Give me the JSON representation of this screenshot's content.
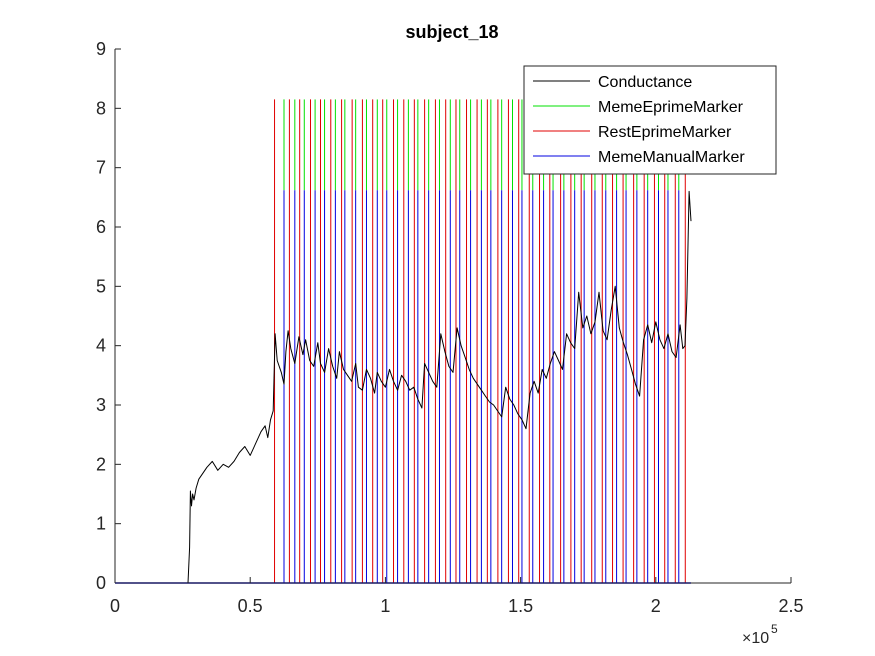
{
  "chart_data": {
    "type": "line",
    "title": "subject_18",
    "xlabel": "",
    "ylabel": "",
    "xlim": [
      0,
      250000
    ],
    "ylim": [
      0,
      9
    ],
    "x_exponent_label": "×10",
    "x_exponent_power": "5",
    "x_ticks": [
      {
        "value": 0,
        "label": "0"
      },
      {
        "value": 50000,
        "label": "0.5"
      },
      {
        "value": 100000,
        "label": "1"
      },
      {
        "value": 150000,
        "label": "1.5"
      },
      {
        "value": 200000,
        "label": "2"
      },
      {
        "value": 250000,
        "label": "2.5"
      }
    ],
    "y_ticks": [
      {
        "value": 0,
        "label": "0"
      },
      {
        "value": 1,
        "label": "1"
      },
      {
        "value": 2,
        "label": "2"
      },
      {
        "value": 3,
        "label": "3"
      },
      {
        "value": 4,
        "label": "4"
      },
      {
        "value": 5,
        "label": "5"
      },
      {
        "value": 6,
        "label": "6"
      },
      {
        "value": 7,
        "label": "7"
      },
      {
        "value": 8,
        "label": "8"
      },
      {
        "value": 9,
        "label": "9"
      }
    ],
    "grid": false,
    "legend_position": "top-right",
    "series": [
      {
        "name": "Conductance",
        "color": "#000000",
        "kind": "line",
        "x": [
          0,
          20000,
          27000,
          27600,
          27900,
          28300,
          28700,
          29200,
          30000,
          31000,
          32500,
          34000,
          36000,
          38000,
          40000,
          42000,
          44000,
          46000,
          48000,
          50000,
          52000,
          54000,
          55500,
          56500,
          57500,
          58500,
          59200,
          60000,
          61500,
          62500,
          63200,
          64000,
          65000,
          66500,
          68000,
          69500,
          70500,
          72000,
          73500,
          75000,
          76000,
          77500,
          79000,
          80500,
          82000,
          83000,
          84500,
          86000,
          87500,
          89000,
          90000,
          91500,
          93000,
          94500,
          96000,
          97000,
          98500,
          100000,
          101500,
          103000,
          104500,
          106000,
          107500,
          109000,
          110500,
          112000,
          113500,
          114500,
          116000,
          117500,
          119000,
          120500,
          122000,
          123500,
          125000,
          126500,
          128000,
          129500,
          131000,
          132500,
          134000,
          135500,
          137000,
          138500,
          140000,
          141500,
          143000,
          144500,
          146000,
          147500,
          149000,
          150500,
          152000,
          153500,
          155000,
          156500,
          158000,
          159500,
          161000,
          162500,
          164000,
          165500,
          167000,
          168500,
          170000,
          171500,
          173000,
          174500,
          176000,
          177500,
          179000,
          180500,
          182000,
          183500,
          185000,
          186500,
          188000,
          189500,
          191000,
          192500,
          194000,
          195500,
          197000,
          198500,
          200000,
          201500,
          203000,
          204500,
          206000,
          207500,
          209000,
          210000,
          210800,
          211500,
          212300,
          213000
        ],
        "y": [
          0,
          0,
          0,
          0.6,
          1.55,
          1.3,
          1.5,
          1.4,
          1.6,
          1.75,
          1.85,
          1.95,
          2.05,
          1.9,
          2.0,
          1.95,
          2.05,
          2.2,
          2.3,
          2.15,
          2.35,
          2.55,
          2.65,
          2.45,
          2.75,
          2.9,
          4.2,
          3.75,
          3.55,
          3.35,
          3.9,
          4.25,
          3.95,
          3.7,
          4.15,
          3.85,
          4.1,
          3.75,
          3.65,
          4.05,
          3.7,
          3.55,
          3.95,
          3.65,
          3.45,
          3.9,
          3.6,
          3.5,
          3.4,
          3.7,
          3.3,
          3.25,
          3.6,
          3.45,
          3.2,
          3.55,
          3.4,
          3.3,
          3.6,
          3.4,
          3.25,
          3.5,
          3.4,
          3.25,
          3.3,
          3.1,
          2.95,
          3.7,
          3.55,
          3.4,
          3.3,
          4.2,
          3.9,
          3.65,
          3.55,
          4.3,
          4.0,
          3.8,
          3.6,
          3.45,
          3.35,
          3.25,
          3.15,
          3.05,
          3.0,
          2.9,
          2.8,
          3.3,
          3.1,
          3.0,
          2.85,
          2.75,
          2.6,
          3.2,
          3.4,
          3.2,
          3.6,
          3.45,
          3.7,
          3.9,
          3.75,
          3.6,
          4.2,
          4.05,
          3.95,
          4.9,
          4.3,
          4.5,
          4.2,
          4.4,
          4.9,
          4.25,
          4.1,
          4.6,
          5.0,
          4.3,
          4.05,
          3.85,
          3.6,
          3.35,
          3.15,
          4.1,
          4.35,
          4.05,
          4.4,
          4.1,
          3.95,
          4.2,
          3.9,
          3.8,
          4.35,
          3.95,
          4.0,
          4.8,
          6.6,
          6.1
        ]
      }
    ],
    "markers": [
      {
        "name": "MemeEprimeMarker",
        "color": "#00e000",
        "low": 6.62,
        "high": 8.15,
        "x": [
          62500,
          66500,
          70000,
          74000,
          77500,
          81500,
          85000,
          89000,
          93000,
          97000,
          100500,
          104500,
          108500,
          112000,
          116000,
          120000,
          124000,
          127500,
          131500,
          135500,
          139000,
          143000,
          147000,
          150500,
          154500,
          158500,
          162000,
          166000,
          170000,
          173500,
          177500,
          181500,
          185500,
          189000,
          193000,
          197000,
          201000,
          204500,
          208500
        ]
      },
      {
        "name": "RestEprimeMarker",
        "color": "#e00000",
        "low": 0,
        "high": 8.15,
        "x": [
          59000,
          64500,
          68300,
          72300,
          76000,
          79800,
          83800,
          87700,
          91500,
          95300,
          99000,
          103000,
          106800,
          110700,
          114500,
          118500,
          122300,
          126100,
          130000,
          133900,
          137700,
          141600,
          145500,
          149300,
          153200,
          157000,
          160800,
          164800,
          168600,
          172400,
          176300,
          180200,
          184000,
          187900,
          191800,
          195700,
          199500,
          203300,
          207200,
          210900
        ]
      },
      {
        "name": "MemeManualMarker",
        "color": "#0000e0",
        "low": 0,
        "high": 6.62,
        "x": [
          62500,
          66500,
          70000,
          74000,
          77500,
          81500,
          85000,
          89000,
          93000,
          97000,
          100500,
          104500,
          108500,
          112000,
          116000,
          120000,
          124000,
          127500,
          131500,
          135500,
          139000,
          143000,
          147000,
          150500,
          154500,
          158500,
          162000,
          166000,
          170000,
          173500,
          177500,
          181500,
          185500,
          189000,
          193000,
          197000,
          201000,
          204500,
          208500
        ]
      }
    ],
    "legend": [
      {
        "name": "Conductance",
        "color": "#000000"
      },
      {
        "name": "MemeEprimeMarker",
        "color": "#00e000"
      },
      {
        "name": "RestEprimeMarker",
        "color": "#e00000"
      },
      {
        "name": "MemeManualMarker",
        "color": "#0000e0"
      }
    ]
  }
}
